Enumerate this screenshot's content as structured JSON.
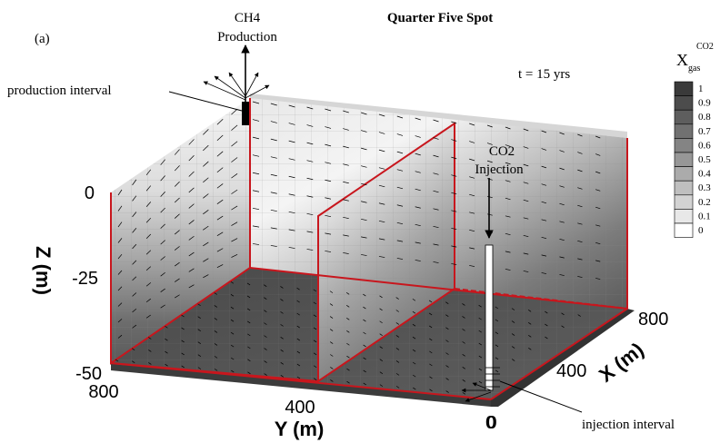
{
  "figure": {
    "panel_label": "(a)",
    "title": "Quarter Five Spot",
    "time_label": "t = 15 yrs"
  },
  "annotations": {
    "production_title_line1": "CH4",
    "production_title_line2": "Production",
    "injection_title_line1": "CO2",
    "injection_title_line2": "Injection",
    "production_interval": "production interval",
    "injection_interval": "injection interval"
  },
  "axes": {
    "z_label": "Z (m)",
    "z_ticks": [
      "0",
      "-25",
      "-50"
    ],
    "y_label": "Y (m)",
    "y_ticks": [
      "800",
      "400",
      "0"
    ],
    "x_label": "X (m)",
    "x_ticks": [
      "800",
      "400",
      "0"
    ]
  },
  "legend": {
    "label_main": "X",
    "label_sub": "gas",
    "label_sup": "CO2",
    "levels": [
      "1",
      "0.9",
      "0.8",
      "0.7",
      "0.6",
      "0.5",
      "0.4",
      "0.3",
      "0.2",
      "0.1",
      "0"
    ],
    "colors": [
      "#3a3a3a",
      "#4c4c4c",
      "#5e5e5e",
      "#717171",
      "#848484",
      "#979797",
      "#ababab",
      "#bfbfbf",
      "#d3d3d3",
      "#e8e8e8",
      "#ffffff"
    ]
  },
  "colors": {
    "outline": "#c8161d"
  }
}
